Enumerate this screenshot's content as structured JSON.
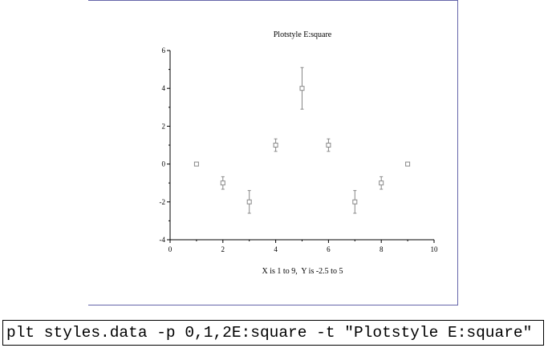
{
  "chart_data": {
    "type": "scatter",
    "title": "Plotstyle E:square",
    "xlabel": "X is 1 to 9,  Y is -2.5 to 5",
    "ylabel": "",
    "xlim": [
      0,
      10
    ],
    "ylim": [
      -4,
      6
    ],
    "x_ticks": [
      0,
      2,
      4,
      6,
      8,
      10
    ],
    "y_ticks": [
      -4,
      -2,
      0,
      2,
      4,
      6
    ],
    "grid": false,
    "marker": "square",
    "series": [
      {
        "points": [
          {
            "x": 1,
            "y": 0,
            "err": 0
          },
          {
            "x": 2,
            "y": -1,
            "err": 0.33
          },
          {
            "x": 3,
            "y": -2,
            "err": 0.6
          },
          {
            "x": 4,
            "y": 1,
            "err": 0.33
          },
          {
            "x": 5,
            "y": 4,
            "err": 1.1
          },
          {
            "x": 6,
            "y": 1,
            "err": 0.33
          },
          {
            "x": 7,
            "y": -2,
            "err": 0.6
          },
          {
            "x": 8,
            "y": -1,
            "err": 0.33
          },
          {
            "x": 9,
            "y": 0,
            "err": 0
          }
        ]
      }
    ],
    "colors": {
      "axis": "#000000",
      "marker": "#888888",
      "frame": "#6666aa"
    }
  },
  "command": {
    "text": "plt styles.data -p 0,1,2E:square -t \"Plotstyle E:square\""
  }
}
